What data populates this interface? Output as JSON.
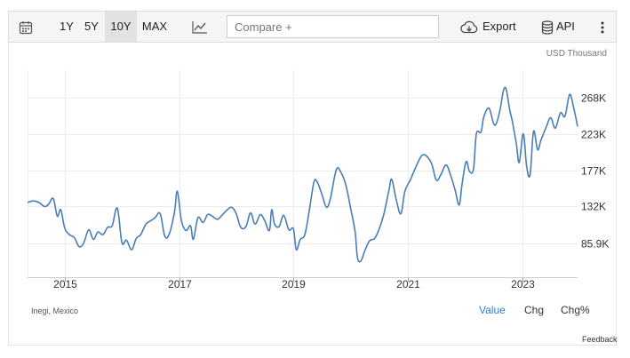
{
  "toolbar": {
    "ranges": [
      "1Y",
      "5Y",
      "10Y",
      "MAX"
    ],
    "active_range": "10Y",
    "compare_placeholder": "Compare +",
    "export_label": "Export",
    "api_label": "API",
    "icons": [
      "calendar-icon",
      "line-chart-icon",
      "cloud-download-icon",
      "database-icon",
      "more-vertical-icon"
    ]
  },
  "unit_label": "USD Thousand",
  "source": "Inegi, Mexico",
  "view_tabs": [
    "Value",
    "Chg",
    "Chg%"
  ],
  "active_view": "Value",
  "feedback": "Feedback",
  "colors": {
    "line": "#4a7db5",
    "active_tab": "#2f7ed8",
    "grid": "#ececec"
  },
  "chart_data": {
    "type": "line",
    "y_ticks": [
      {
        "value": 85900,
        "label": "85.9K"
      },
      {
        "value": 132000,
        "label": "132K"
      },
      {
        "value": 177000,
        "label": "177K"
      },
      {
        "value": 223000,
        "label": "223K"
      },
      {
        "value": 268000,
        "label": "268K"
      }
    ],
    "x_ticks": [
      "2015",
      "2017",
      "2019",
      "2021",
      "2023"
    ],
    "xlim": [
      2014.35,
      2023.97
    ],
    "ylim": [
      55000,
      300000
    ],
    "grid": true,
    "series": [
      {
        "values": [
          [
            2014.35,
            137000
          ],
          [
            2014.45,
            139000
          ],
          [
            2014.55,
            137000
          ],
          [
            2014.65,
            132000
          ],
          [
            2014.72,
            135000
          ],
          [
            2014.8,
            142000
          ],
          [
            2014.87,
            120000
          ],
          [
            2014.93,
            128000
          ],
          [
            2015.0,
            105000
          ],
          [
            2015.08,
            97000
          ],
          [
            2015.17,
            93000
          ],
          [
            2015.25,
            82000
          ],
          [
            2015.33,
            86000
          ],
          [
            2015.42,
            103000
          ],
          [
            2015.5,
            91000
          ],
          [
            2015.58,
            100000
          ],
          [
            2015.67,
            97000
          ],
          [
            2015.75,
            106000
          ],
          [
            2015.83,
            108000
          ],
          [
            2015.92,
            130000
          ],
          [
            2016.0,
            87000
          ],
          [
            2016.08,
            90000
          ],
          [
            2016.17,
            78000
          ],
          [
            2016.25,
            92000
          ],
          [
            2016.33,
            97000
          ],
          [
            2016.42,
            110000
          ],
          [
            2016.5,
            114000
          ],
          [
            2016.58,
            118000
          ],
          [
            2016.67,
            123000
          ],
          [
            2016.75,
            95000
          ],
          [
            2016.83,
            98000
          ],
          [
            2016.92,
            125000
          ],
          [
            2016.97,
            151000
          ],
          [
            2017.04,
            115000
          ],
          [
            2017.12,
            102000
          ],
          [
            2017.2,
            108000
          ],
          [
            2017.25,
            91000
          ],
          [
            2017.33,
            118000
          ],
          [
            2017.42,
            112000
          ],
          [
            2017.5,
            122000
          ],
          [
            2017.58,
            120000
          ],
          [
            2017.67,
            116000
          ],
          [
            2017.75,
            121000
          ],
          [
            2017.83,
            127000
          ],
          [
            2017.92,
            131000
          ],
          [
            2018.0,
            123000
          ],
          [
            2018.08,
            106000
          ],
          [
            2018.17,
            107000
          ],
          [
            2018.25,
            124000
          ],
          [
            2018.33,
            110000
          ],
          [
            2018.42,
            122000
          ],
          [
            2018.5,
            114000
          ],
          [
            2018.58,
            102000
          ],
          [
            2018.62,
            128000
          ],
          [
            2018.67,
            110000
          ],
          [
            2018.75,
            107000
          ],
          [
            2018.83,
            121000
          ],
          [
            2018.92,
            103000
          ],
          [
            2019.0,
            104000
          ],
          [
            2019.05,
            78000
          ],
          [
            2019.12,
            91000
          ],
          [
            2019.2,
            97000
          ],
          [
            2019.28,
            128000
          ],
          [
            2019.36,
            163000
          ],
          [
            2019.42,
            162000
          ],
          [
            2019.5,
            147000
          ],
          [
            2019.58,
            131000
          ],
          [
            2019.65,
            143000
          ],
          [
            2019.75,
            178000
          ],
          [
            2019.83,
            175000
          ],
          [
            2019.92,
            158000
          ],
          [
            2020.0,
            130000
          ],
          [
            2020.08,
            100000
          ],
          [
            2020.12,
            68000
          ],
          [
            2020.18,
            64000
          ],
          [
            2020.25,
            77000
          ],
          [
            2020.33,
            89000
          ],
          [
            2020.42,
            92000
          ],
          [
            2020.5,
            104000
          ],
          [
            2020.58,
            122000
          ],
          [
            2020.67,
            152000
          ],
          [
            2020.72,
            166000
          ],
          [
            2020.8,
            140000
          ],
          [
            2020.88,
            123000
          ],
          [
            2020.95,
            151000
          ],
          [
            2021.05,
            166000
          ],
          [
            2021.17,
            186000
          ],
          [
            2021.25,
            196000
          ],
          [
            2021.33,
            195000
          ],
          [
            2021.42,
            185000
          ],
          [
            2021.5,
            165000
          ],
          [
            2021.58,
            172000
          ],
          [
            2021.67,
            184000
          ],
          [
            2021.75,
            171000
          ],
          [
            2021.83,
            152000
          ],
          [
            2021.9,
            134000
          ],
          [
            2021.95,
            160000
          ],
          [
            2022.02,
            188000
          ],
          [
            2022.08,
            176000
          ],
          [
            2022.15,
            179000
          ],
          [
            2022.2,
            223000
          ],
          [
            2022.28,
            225000
          ],
          [
            2022.33,
            244000
          ],
          [
            2022.42,
            255000
          ],
          [
            2022.5,
            236000
          ],
          [
            2022.55,
            236000
          ],
          [
            2022.62,
            255000
          ],
          [
            2022.67,
            276000
          ],
          [
            2022.72,
            279000
          ],
          [
            2022.78,
            254000
          ],
          [
            2022.83,
            238000
          ],
          [
            2022.9,
            210000
          ],
          [
            2022.95,
            187000
          ],
          [
            2023.02,
            223000
          ],
          [
            2023.08,
            182000
          ],
          [
            2023.14,
            172000
          ],
          [
            2023.2,
            226000
          ],
          [
            2023.27,
            203000
          ],
          [
            2023.33,
            215000
          ],
          [
            2023.42,
            231000
          ],
          [
            2023.5,
            243000
          ],
          [
            2023.58,
            230000
          ],
          [
            2023.67,
            249000
          ],
          [
            2023.75,
            245000
          ],
          [
            2023.83,
            272000
          ],
          [
            2023.9,
            256000
          ],
          [
            2023.97,
            232000
          ]
        ]
      }
    ]
  }
}
